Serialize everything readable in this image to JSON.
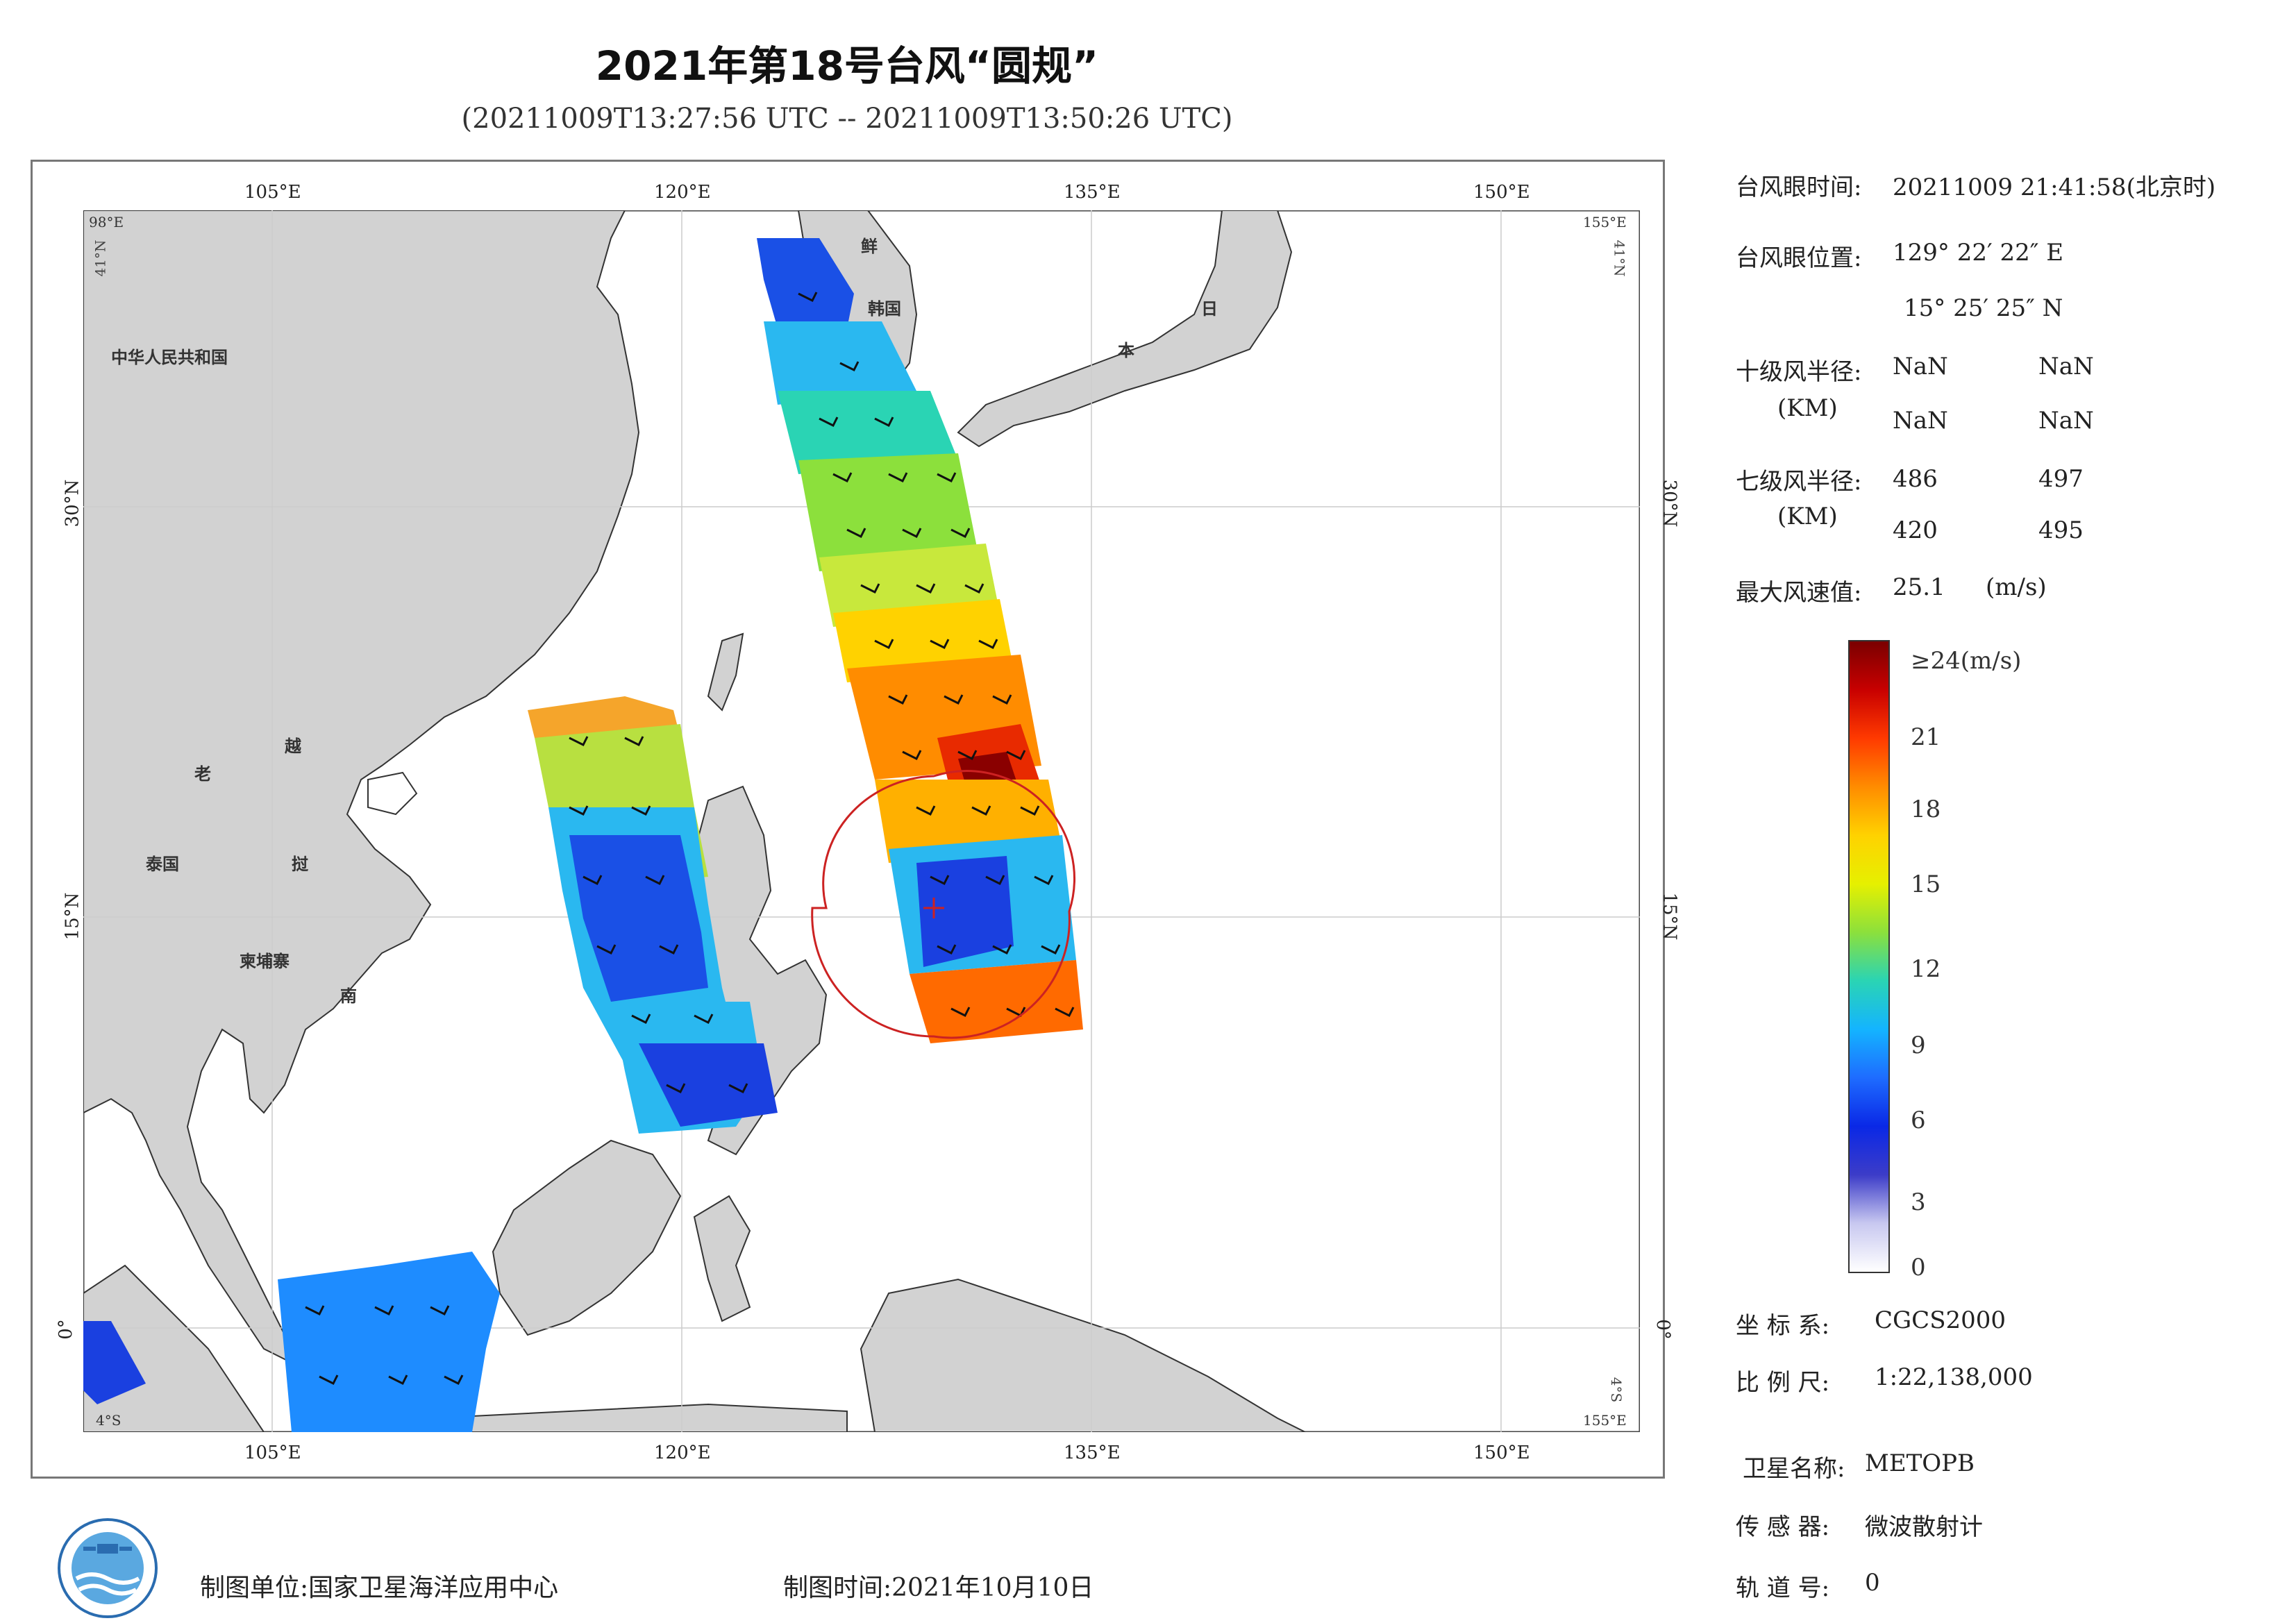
{
  "title": "2021年第18号台风“圆规”",
  "subtitle": "(20211009T13:27:56 UTC -- 20211009T13:50:26 UTC)",
  "map": {
    "lon_ticks": [
      "105°E",
      "120°E",
      "135°E",
      "150°E"
    ],
    "lat_ticks": [
      "30°N",
      "15°N",
      "0°"
    ],
    "corner_labels": {
      "top_left": "98°E",
      "top_right": "155°E",
      "left_top": "41°N",
      "right_top": "41°N",
      "bottom_left": "4°S",
      "bottom_right": "155°E",
      "right_bottom": "4°S"
    },
    "country_labels": {
      "china": "中华人民共和国",
      "laos": "老",
      "vietnam_1": "越",
      "vietnam_2": "南",
      "thailand": "泰国",
      "cambodia": "柬埔寨",
      "laos_2": "挝",
      "korea_n": "鲜",
      "korea_s": "韩国",
      "japan_1": "日",
      "japan_2": "本"
    },
    "colors": {
      "land": "#d2d2d2",
      "ocean": "#ffffff",
      "circle": "#cc2222"
    }
  },
  "info": {
    "eye_time_label": "台风眼时间:",
    "eye_time_value": "20211009 21:41:58(北京时)",
    "eye_pos_label": "台风眼位置:",
    "eye_lon": "129° 22′ 22″ E",
    "eye_lat": "15° 25′ 25″ N",
    "r10_label": "十级风半径:",
    "r10_unit": "(KM)",
    "r10_values": [
      "NaN",
      "NaN",
      "NaN",
      "NaN"
    ],
    "r7_label": "七级风半径:",
    "r7_unit": "(KM)",
    "r7_values": [
      "486",
      "497",
      "420",
      "495"
    ],
    "max_wind_label": "最大风速值:",
    "max_wind_value": "25.1",
    "max_wind_unit": "(m/s)"
  },
  "colorbar": {
    "top_label": "≥24(m/s)",
    "ticks": [
      "21",
      "18",
      "15",
      "12",
      "9",
      "6",
      "3",
      "0"
    ],
    "stops": [
      "#7a0000",
      "#c80000",
      "#ff3a00",
      "#ff8c00",
      "#ffd200",
      "#e6f000",
      "#8ce03c",
      "#2ad4b4",
      "#14b4ff",
      "#1e6cff",
      "#0a28e6",
      "#3c3cc8",
      "#c8c8f0",
      "#ffffff"
    ]
  },
  "meta": {
    "crs_label": "坐 标 系:",
    "crs_value": "CGCS2000",
    "scale_label": "比 例 尺:",
    "scale_value": "1:22,138,000",
    "sat_label": "卫星名称:",
    "sat_value": "METOPB",
    "sensor_label": "传 感 器:",
    "sensor_value": "微波散射计",
    "orbit_label": "轨 道 号:",
    "orbit_value": "0"
  },
  "footer": {
    "unit_label": "制图单位:国家卫星海洋应用中心",
    "time_label": "制图时间:2021年10月10日"
  }
}
